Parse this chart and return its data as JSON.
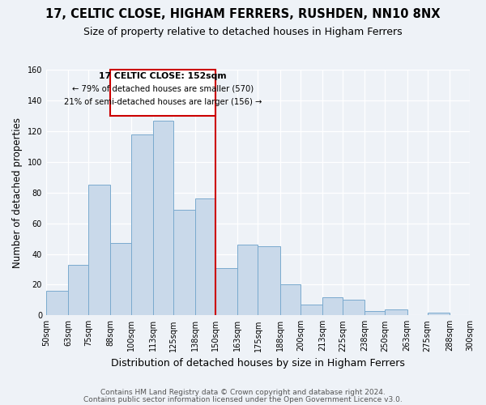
{
  "title": "17, CELTIC CLOSE, HIGHAM FERRERS, RUSHDEN, NN10 8NX",
  "subtitle": "Size of property relative to detached houses in Higham Ferrers",
  "xlabel": "Distribution of detached houses by size in Higham Ferrers",
  "ylabel": "Number of detached properties",
  "bin_edges": [
    50,
    63,
    75,
    88,
    100,
    113,
    125,
    138,
    150,
    163,
    175,
    188,
    200,
    213,
    225,
    238,
    250,
    263,
    275,
    288,
    300
  ],
  "bin_heights": [
    16,
    33,
    85,
    47,
    118,
    127,
    69,
    76,
    31,
    46,
    45,
    20,
    7,
    12,
    10,
    3,
    4,
    0,
    2,
    0
  ],
  "bar_color": "#c9d9ea",
  "bar_edge_color": "#7aaace",
  "vline_x": 150,
  "vline_color": "#cc0000",
  "ylim": [
    0,
    160
  ],
  "yticks": [
    0,
    20,
    40,
    60,
    80,
    100,
    120,
    140,
    160
  ],
  "annotation_title": "17 CELTIC CLOSE: 152sqm",
  "annotation_line1": "← 79% of detached houses are smaller (570)",
  "annotation_line2": "21% of semi-detached houses are larger (156) →",
  "annotation_box_color": "#ffffff",
  "annotation_box_edge": "#cc0000",
  "footnote1": "Contains HM Land Registry data © Crown copyright and database right 2024.",
  "footnote2": "Contains public sector information licensed under the Open Government Licence v3.0.",
  "background_color": "#eef2f7",
  "grid_color": "#ffffff",
  "title_fontsize": 10.5,
  "subtitle_fontsize": 9,
  "ylabel_fontsize": 8.5,
  "xlabel_fontsize": 9,
  "tick_fontsize": 7,
  "footnote_fontsize": 6.5
}
